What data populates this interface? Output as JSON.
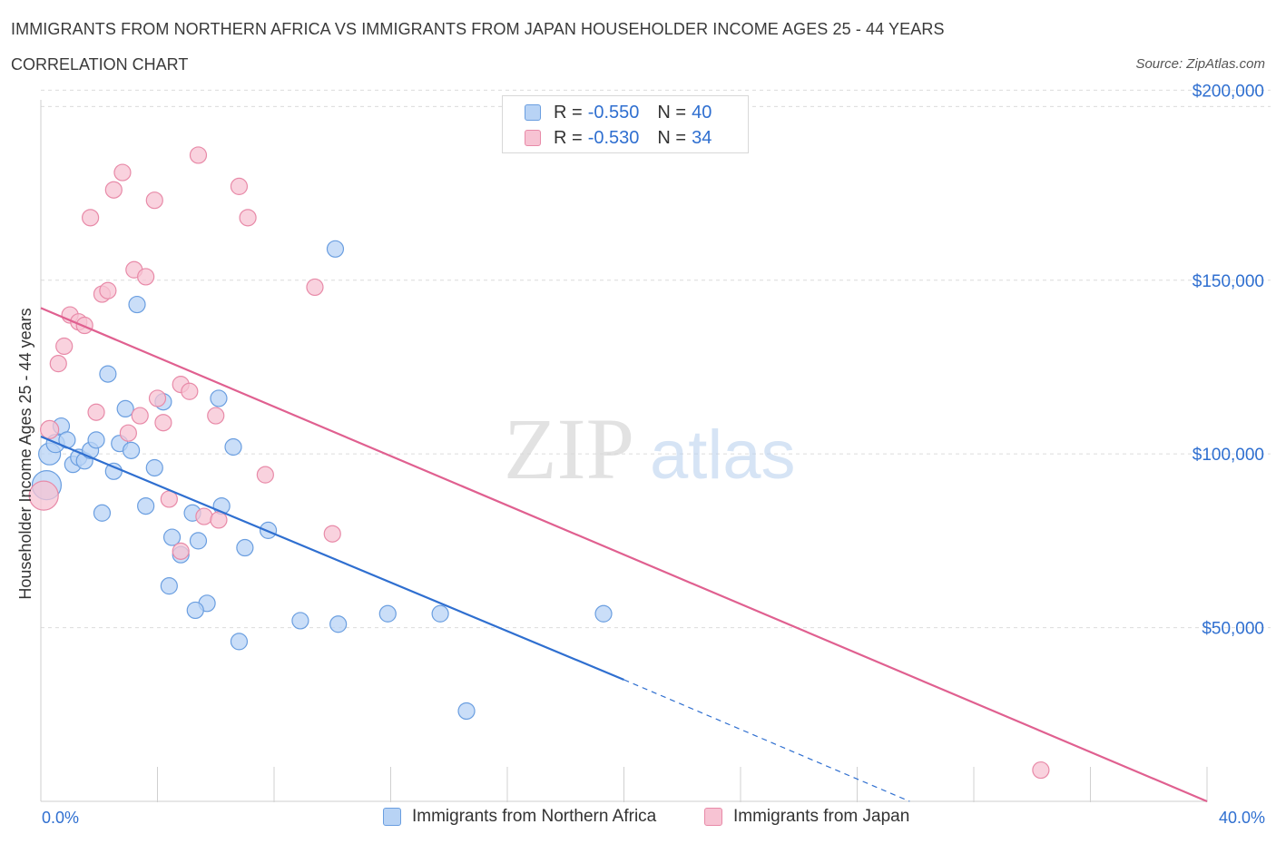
{
  "title": "IMMIGRANTS FROM NORTHERN AFRICA VS IMMIGRANTS FROM JAPAN HOUSEHOLDER INCOME AGES 25 - 44 YEARS",
  "subtitle": "CORRELATION CHART",
  "source": "Source: ZipAtlas.com",
  "watermark": {
    "zip": "ZIP",
    "atlas": "atlas"
  },
  "colors": {
    "blue_fill": "#b8d3f5",
    "blue_stroke": "#6a9ee0",
    "blue_line": "#2f6fd0",
    "pink_fill": "#f7c3d3",
    "pink_stroke": "#e88aa8",
    "pink_line": "#e06090",
    "axis_label": "#2f6fd0",
    "grid": "#dcdcdc"
  },
  "legend": {
    "r_label": "R =",
    "n_label": "N =",
    "rows": [
      {
        "r": "-0.550",
        "n": "40",
        "color": "blue"
      },
      {
        "r": "-0.530",
        "n": "34",
        "color": "pink"
      }
    ]
  },
  "bottom_legend": [
    "Immigrants from Northern Africa",
    "Immigrants from Japan"
  ],
  "chart_data": {
    "type": "scatter",
    "xlabel": "",
    "ylabel": "Householder Income Ages 25 - 44 years",
    "xlim": [
      0,
      40
    ],
    "ylim": [
      0,
      200000
    ],
    "x_tick_labels": [
      "0.0%",
      "40.0%"
    ],
    "y_ticks": [
      {
        "value": 50000,
        "label": "$50,000"
      },
      {
        "value": 100000,
        "label": "$100,000"
      },
      {
        "value": 150000,
        "label": "$150,000"
      },
      {
        "value": 200000,
        "label": "$200,000"
      }
    ],
    "grid": true,
    "series": [
      {
        "name": "Immigrants from Northern Africa",
        "color": "blue",
        "points": [
          [
            0.2,
            91000,
            16
          ],
          [
            0.3,
            100000,
            12
          ],
          [
            0.5,
            103000,
            10
          ],
          [
            0.7,
            108000,
            9
          ],
          [
            0.9,
            104000,
            9
          ],
          [
            1.1,
            97000,
            9
          ],
          [
            1.3,
            99000,
            9
          ],
          [
            1.5,
            98000,
            9
          ],
          [
            1.7,
            101000,
            9
          ],
          [
            1.9,
            104000,
            9
          ],
          [
            2.1,
            83000,
            9
          ],
          [
            2.3,
            123000,
            9
          ],
          [
            2.5,
            95000,
            9
          ],
          [
            2.7,
            103000,
            9
          ],
          [
            2.9,
            113000,
            9
          ],
          [
            3.1,
            101000,
            9
          ],
          [
            3.3,
            143000,
            9
          ],
          [
            3.6,
            85000,
            9
          ],
          [
            3.9,
            96000,
            9
          ],
          [
            4.2,
            115000,
            9
          ],
          [
            4.5,
            76000,
            9
          ],
          [
            4.8,
            71000,
            9
          ],
          [
            5.2,
            83000,
            9
          ],
          [
            5.4,
            75000,
            9
          ],
          [
            5.7,
            57000,
            9
          ],
          [
            5.3,
            55000,
            9
          ],
          [
            6.2,
            85000,
            9
          ],
          [
            6.6,
            102000,
            9
          ],
          [
            6.1,
            116000,
            9
          ],
          [
            7.0,
            73000,
            9
          ],
          [
            4.4,
            62000,
            9
          ],
          [
            6.8,
            46000,
            9
          ],
          [
            7.8,
            78000,
            9
          ],
          [
            8.9,
            52000,
            9
          ],
          [
            10.2,
            51000,
            9
          ],
          [
            10.1,
            159000,
            9
          ],
          [
            11.9,
            54000,
            9
          ],
          [
            13.7,
            54000,
            9
          ],
          [
            19.3,
            54000,
            9
          ],
          [
            14.6,
            26000,
            9
          ]
        ]
      },
      {
        "name": "Immigrants from Japan",
        "color": "pink",
        "points": [
          [
            0.1,
            88000,
            16
          ],
          [
            0.3,
            107000,
            10
          ],
          [
            0.6,
            126000,
            9
          ],
          [
            0.8,
            131000,
            9
          ],
          [
            1.0,
            140000,
            9
          ],
          [
            1.3,
            138000,
            9
          ],
          [
            1.5,
            137000,
            9
          ],
          [
            1.7,
            168000,
            9
          ],
          [
            1.9,
            112000,
            9
          ],
          [
            2.1,
            146000,
            9
          ],
          [
            2.3,
            147000,
            9
          ],
          [
            2.5,
            176000,
            9
          ],
          [
            2.8,
            181000,
            9
          ],
          [
            3.0,
            106000,
            9
          ],
          [
            3.2,
            153000,
            9
          ],
          [
            3.4,
            111000,
            9
          ],
          [
            3.6,
            151000,
            9
          ],
          [
            3.9,
            173000,
            9
          ],
          [
            4.0,
            116000,
            9
          ],
          [
            4.2,
            109000,
            9
          ],
          [
            4.4,
            87000,
            9
          ],
          [
            4.8,
            72000,
            9
          ],
          [
            4.8,
            120000,
            9
          ],
          [
            5.1,
            118000,
            9
          ],
          [
            5.4,
            186000,
            9
          ],
          [
            5.6,
            82000,
            9
          ],
          [
            6.1,
            81000,
            9
          ],
          [
            6.0,
            111000,
            9
          ],
          [
            6.8,
            177000,
            9
          ],
          [
            7.1,
            168000,
            9
          ],
          [
            7.7,
            94000,
            9
          ],
          [
            9.4,
            148000,
            9
          ],
          [
            10.0,
            77000,
            9
          ],
          [
            34.3,
            9000,
            9
          ]
        ]
      }
    ],
    "trend_lines": [
      {
        "series": "Immigrants from Northern Africa",
        "x0": 0,
        "y0": 105000,
        "x1": 20.0,
        "y1": 35000,
        "dash_to_x": 29.8,
        "dash_to_y": 0
      },
      {
        "series": "Immigrants from Japan",
        "x0": 0,
        "y0": 142000,
        "x1": 40,
        "y1": 0
      }
    ]
  }
}
